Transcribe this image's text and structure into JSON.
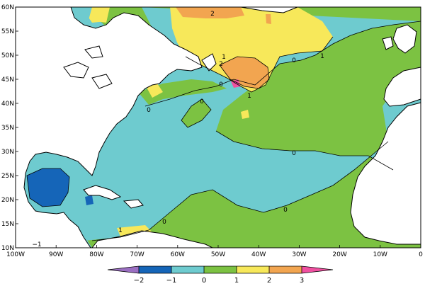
{
  "map": {
    "lat_labels": [
      "60N",
      "55N",
      "50N",
      "45N",
      "40N",
      "35N",
      "30N",
      "25N",
      "20N",
      "15N",
      "10N"
    ],
    "lon_labels": [
      "100W",
      "90W",
      "80W",
      "70W",
      "60W",
      "50W",
      "40W",
      "30W",
      "20W",
      "10W",
      "0"
    ],
    "contour_labels": [
      {
        "id": "c1",
        "text": "2"
      },
      {
        "id": "c2",
        "text": "1"
      },
      {
        "id": "c3",
        "text": "2"
      },
      {
        "id": "c4",
        "text": "0"
      },
      {
        "id": "c5",
        "text": "1"
      },
      {
        "id": "c6",
        "text": "0"
      },
      {
        "id": "c7",
        "text": "1"
      },
      {
        "id": "c8",
        "text": "0"
      },
      {
        "id": "c9",
        "text": "0"
      },
      {
        "id": "c10",
        "text": "0"
      },
      {
        "id": "c11",
        "text": "0"
      },
      {
        "id": "c12",
        "text": "0"
      },
      {
        "id": "c13",
        "text": "1"
      },
      {
        "id": "c14",
        "text": "−1"
      }
    ]
  },
  "colorbar": {
    "labels": [
      "−2",
      "−1",
      "0",
      "1",
      "2",
      "3"
    ],
    "colors": [
      "#9b6fc2",
      "#1565b8",
      "#6ecbcf",
      "#7cc242",
      "#f7e85a",
      "#f2a550",
      "#f050a0"
    ]
  }
}
